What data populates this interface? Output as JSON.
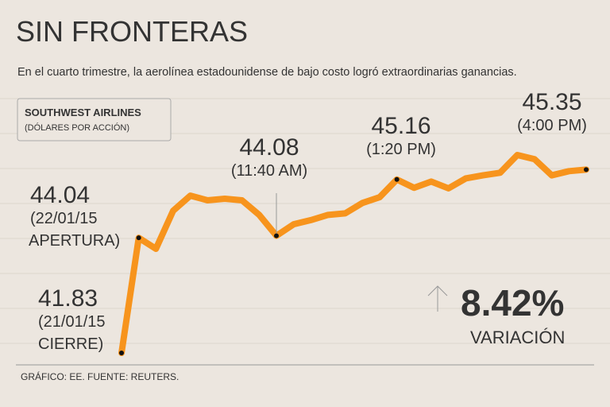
{
  "chart_data": {
    "type": "line",
    "title": "SIN FRONTERAS",
    "subtitle": "En el cuarto trimestre, la aerolínea estadounidense de bajo costo logró extraordinarias ganancias.",
    "box_title": "SOUTHWEST AIRLINES",
    "box_subtitle": "(DÓLARES POR ACCIÓN)",
    "change": "8.42%",
    "change_label": "VARIACIÓN",
    "source": "GRÁFICO: EE. FUENTE: REUTERS.",
    "categories": [
      null,
      null,
      null,
      null,
      null,
      null,
      null,
      null,
      null,
      null,
      null,
      null,
      null,
      null,
      null,
      null,
      null,
      null,
      null,
      null,
      null,
      null,
      null,
      null,
      null,
      null,
      null,
      null
    ],
    "series": [
      {
        "name": "SOUTHWEST AIRLINES",
        "color": "#f7941d",
        "values": [
          41.83,
          44.04,
          43.83,
          44.56,
          44.85,
          44.76,
          44.79,
          44.76,
          44.48,
          44.08,
          44.3,
          44.38,
          44.48,
          44.51,
          44.71,
          44.82,
          45.16,
          45.0,
          45.12,
          44.99,
          45.18,
          45.24,
          45.29,
          45.63,
          45.55,
          45.24,
          45.32,
          45.35
        ]
      }
    ],
    "annotations": [
      {
        "value": 41.83,
        "lines": [
          "(21/01/15",
          "CIERRE)"
        ]
      },
      {
        "value": 44.04,
        "lines": [
          "(22/01/15",
          "APERTURA)"
        ]
      },
      {
        "value": 44.08,
        "lines": [
          "(11:40 AM)"
        ]
      },
      {
        "value": 45.16,
        "lines": [
          "(1:20 PM)"
        ]
      },
      {
        "value": 45.35,
        "lines": [
          "(4:00 PM)"
        ]
      }
    ]
  }
}
